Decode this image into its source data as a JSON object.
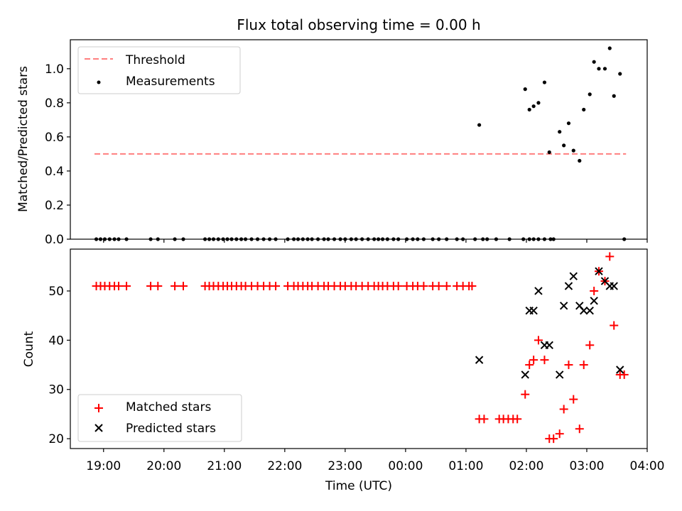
{
  "chart_data": [
    {
      "type": "scatter",
      "title": "Flux total observing time = 0.00 h",
      "xlabel": "",
      "ylabel": "Matched/Predicted stars",
      "x_unit": "hours since 19:00 UTC",
      "xlim": [
        -0.55,
        9.0
      ],
      "ylim": [
        0.0,
        1.17
      ],
      "yticks": [
        0.0,
        0.2,
        0.4,
        0.6,
        0.8,
        1.0
      ],
      "ytick_labels": [
        "0.0",
        "0.2",
        "0.4",
        "0.6",
        "0.8",
        "1.0"
      ],
      "legend": {
        "placement": "upper left",
        "entries": [
          "Threshold",
          "Measurements"
        ]
      },
      "series": [
        {
          "name": "Threshold",
          "kind": "dashed-line",
          "color": "#ff7f7f",
          "x": [
            -0.15,
            8.65
          ],
          "y": [
            0.5,
            0.5
          ]
        },
        {
          "name": "Measurements",
          "kind": "dot",
          "color": "#000000",
          "x": [
            -0.12,
            -0.05,
            0.02,
            0.1,
            0.18,
            0.25,
            0.38,
            0.78,
            0.9,
            1.18,
            1.32,
            1.68,
            1.75,
            1.82,
            1.9,
            1.98,
            2.05,
            2.12,
            2.2,
            2.28,
            2.35,
            2.45,
            2.55,
            2.65,
            2.75,
            2.85,
            3.05,
            3.15,
            3.22,
            3.3,
            3.38,
            3.45,
            3.55,
            3.65,
            3.72,
            3.82,
            3.92,
            4.0,
            4.1,
            4.18,
            4.28,
            4.38,
            4.48,
            4.55,
            4.62,
            4.7,
            4.8,
            4.88,
            5.02,
            5.12,
            5.2,
            5.3,
            5.45,
            5.55,
            5.68,
            5.85,
            5.95,
            6.15,
            6.28,
            6.35,
            6.5,
            6.72,
            6.95,
            7.05,
            7.12,
            7.2,
            7.3,
            7.4,
            7.45,
            8.62,
            6.22,
            6.98,
            7.05,
            7.12,
            7.2,
            7.3,
            7.38,
            7.55,
            7.62,
            7.7,
            7.78,
            7.88,
            7.95,
            8.05,
            8.12,
            8.2,
            8.3,
            8.38,
            8.45,
            8.55
          ],
          "y": [
            0,
            0,
            0,
            0,
            0,
            0,
            0,
            0,
            0,
            0,
            0,
            0,
            0,
            0,
            0,
            0,
            0,
            0,
            0,
            0,
            0,
            0,
            0,
            0,
            0,
            0,
            0,
            0,
            0,
            0,
            0,
            0,
            0,
            0,
            0,
            0,
            0,
            0,
            0,
            0,
            0,
            0,
            0,
            0,
            0,
            0,
            0,
            0,
            0,
            0,
            0,
            0,
            0,
            0,
            0,
            0,
            0,
            0,
            0,
            0,
            0,
            0,
            0,
            0,
            0,
            0,
            0,
            0,
            0,
            0,
            0.67,
            0.88,
            0.76,
            0.78,
            0.8,
            0.92,
            0.51,
            0.63,
            0.55,
            0.68,
            0.52,
            0.46,
            0.76,
            0.85,
            1.04,
            1.0,
            1.0,
            1.12,
            0.84,
            0.97
          ]
        }
      ]
    },
    {
      "type": "scatter",
      "title": "",
      "xlabel": "Time (UTC)",
      "ylabel": "Count",
      "x_unit": "hours since 19:00 UTC",
      "xlim": [
        -0.55,
        9.0
      ],
      "ylim": [
        18.0,
        58.5
      ],
      "yticks": [
        20,
        30,
        40,
        50
      ],
      "ytick_labels": [
        "20",
        "30",
        "40",
        "50"
      ],
      "xticks": [
        0,
        1,
        2,
        3,
        4,
        5,
        6,
        7,
        8,
        9
      ],
      "xtick_labels": [
        "19:00",
        "20:00",
        "21:00",
        "22:00",
        "23:00",
        "00:00",
        "01:00",
        "02:00",
        "03:00",
        "04:00"
      ],
      "legend": {
        "placement": "lower left",
        "entries": [
          "Matched stars",
          "Predicted stars"
        ]
      },
      "series": [
        {
          "name": "Matched stars",
          "kind": "plus",
          "color": "#ff0000",
          "x": [
            -0.12,
            -0.05,
            0.02,
            0.1,
            0.18,
            0.25,
            0.38,
            0.78,
            0.9,
            1.18,
            1.32,
            1.68,
            1.75,
            1.82,
            1.9,
            1.98,
            2.05,
            2.12,
            2.2,
            2.28,
            2.35,
            2.45,
            2.55,
            2.65,
            2.75,
            2.85,
            3.05,
            3.15,
            3.22,
            3.3,
            3.38,
            3.45,
            3.55,
            3.65,
            3.72,
            3.82,
            3.92,
            4.0,
            4.1,
            4.18,
            4.28,
            4.38,
            4.48,
            4.55,
            4.62,
            4.7,
            4.8,
            4.88,
            5.02,
            5.12,
            5.2,
            5.3,
            5.45,
            5.55,
            5.68,
            5.85,
            5.95,
            6.05,
            6.1,
            6.22,
            6.3,
            6.55,
            6.62,
            6.7,
            6.78,
            6.85,
            6.98,
            7.05,
            7.12,
            7.2,
            7.3,
            7.38,
            7.45,
            7.55,
            7.62,
            7.7,
            7.78,
            7.88,
            7.95,
            8.05,
            8.12,
            8.2,
            8.3,
            8.38,
            8.45,
            8.55,
            8.62
          ],
          "y": [
            51,
            51,
            51,
            51,
            51,
            51,
            51,
            51,
            51,
            51,
            51,
            51,
            51,
            51,
            51,
            51,
            51,
            51,
            51,
            51,
            51,
            51,
            51,
            51,
            51,
            51,
            51,
            51,
            51,
            51,
            51,
            51,
            51,
            51,
            51,
            51,
            51,
            51,
            51,
            51,
            51,
            51,
            51,
            51,
            51,
            51,
            51,
            51,
            51,
            51,
            51,
            51,
            51,
            51,
            51,
            51,
            51,
            51,
            51,
            24,
            24,
            24,
            24,
            24,
            24,
            24,
            29,
            35,
            36,
            40,
            36,
            20,
            20,
            21,
            26,
            35,
            28,
            22,
            35,
            39,
            50,
            54,
            52,
            57,
            43,
            33,
            33
          ]
        },
        {
          "name": "Predicted stars",
          "kind": "x",
          "color": "#000000",
          "x": [
            6.22,
            6.98,
            7.05,
            7.12,
            7.2,
            7.3,
            7.38,
            7.55,
            7.62,
            7.7,
            7.78,
            7.88,
            7.95,
            8.05,
            8.12,
            8.2,
            8.3,
            8.38,
            8.45,
            8.55
          ],
          "y": [
            36,
            33,
            46,
            46,
            50,
            39,
            39,
            33,
            47,
            51,
            53,
            47,
            46,
            46,
            48,
            54,
            52,
            51,
            51,
            34
          ]
        }
      ]
    }
  ]
}
